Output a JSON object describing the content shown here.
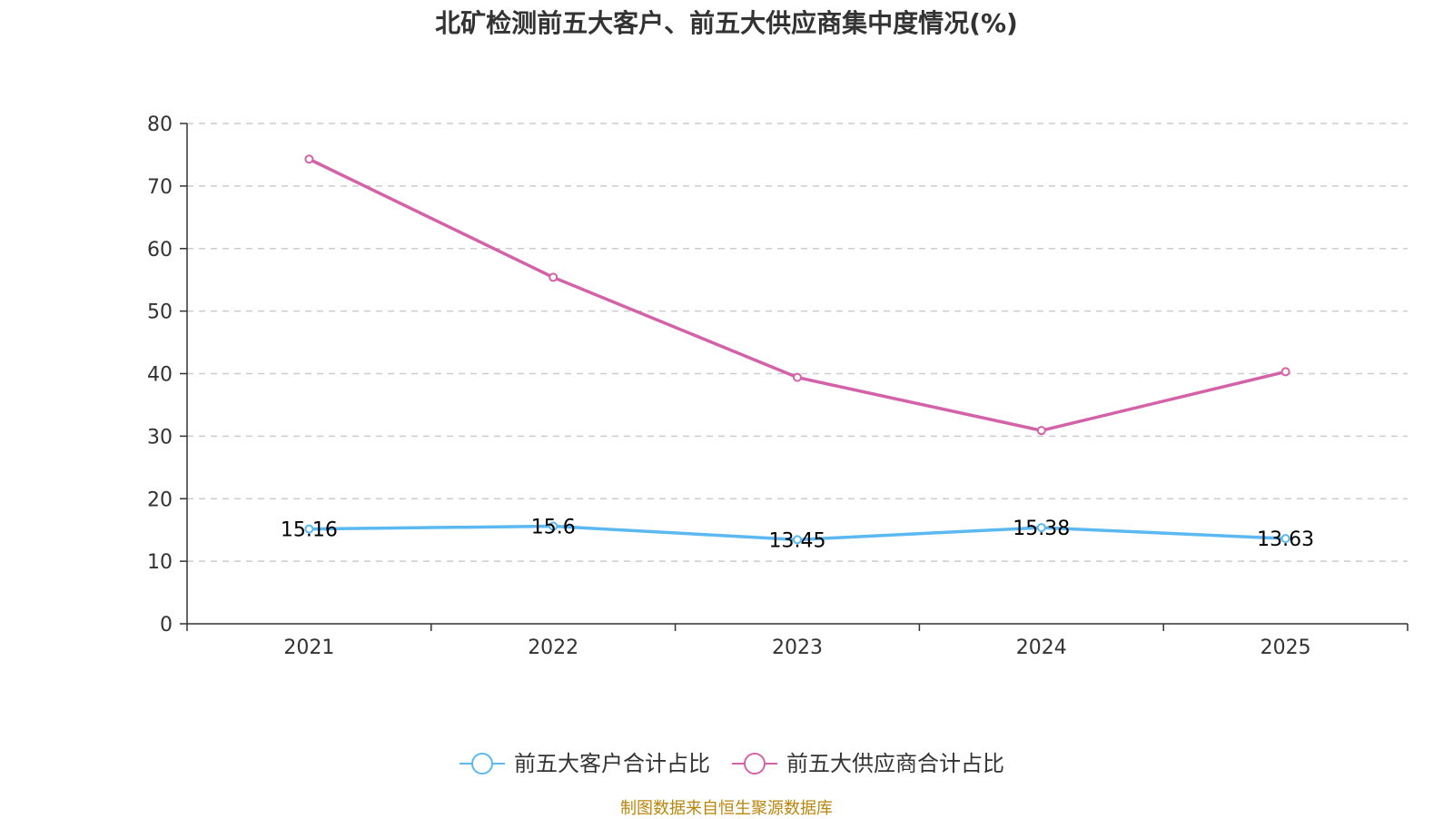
{
  "chart_data": {
    "type": "line",
    "title": "北矿检测前五大客户、前五大供应商集中度情况(%)",
    "categories": [
      "2021",
      "2022",
      "2023",
      "2024",
      "2025"
    ],
    "ylim": [
      0,
      80
    ],
    "yticks": [
      0,
      10,
      20,
      30,
      40,
      50,
      60,
      70,
      80
    ],
    "grid": true,
    "legend_position": "bottom",
    "series": [
      {
        "name": "前五大客户合计占比",
        "color": "#5bb8f0",
        "values": [
          15.16,
          15.6,
          13.45,
          15.38,
          13.63
        ],
        "labels": [
          "15.16",
          "15.6",
          "13.45",
          "15.38",
          "13.63"
        ]
      },
      {
        "name": "前五大供应商合计占比",
        "color": "#d462a8",
        "values": [
          74.3,
          55.4,
          39.4,
          30.9,
          40.3
        ]
      }
    ]
  },
  "source_note": "制图数据来自恒生聚源数据库"
}
